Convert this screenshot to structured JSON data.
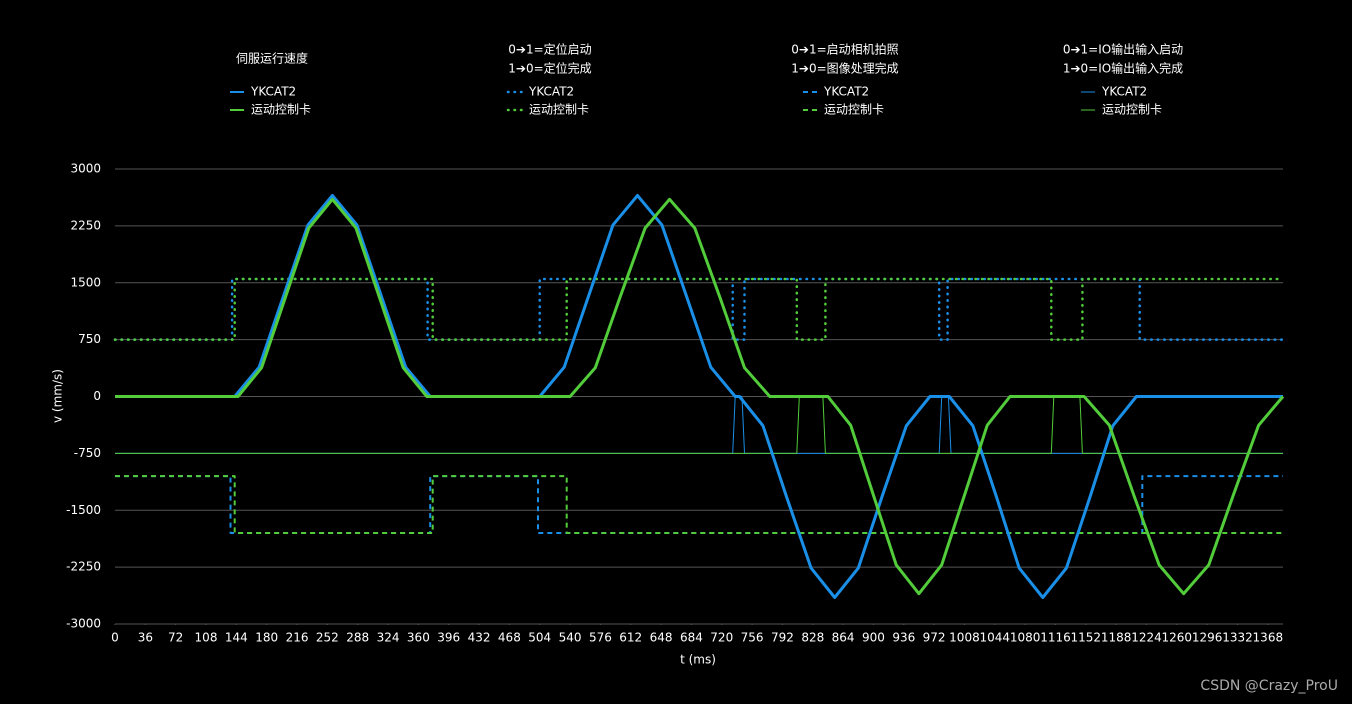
{
  "chart_data": {
    "type": "line",
    "xlabel": "t (ms)",
    "ylabel": "v (mm/s)",
    "xlim": [
      0,
      1386
    ],
    "ylim": [
      -3000,
      3000
    ],
    "xticks": [
      0,
      36,
      72,
      108,
      144,
      180,
      216,
      252,
      288,
      324,
      360,
      396,
      432,
      468,
      504,
      540,
      576,
      612,
      648,
      684,
      720,
      756,
      792,
      828,
      864,
      900,
      936,
      972,
      1008,
      1044,
      1080,
      1116,
      1152,
      1188,
      1224,
      1260,
      1296,
      1332,
      1368
    ],
    "yticks": [
      -3000,
      -2250,
      -1500,
      -750,
      0,
      750,
      1500,
      2250,
      3000
    ],
    "grid": true,
    "groups": [
      {
        "title": [
          "伺服运行速度"
        ],
        "series": [
          {
            "name": "YKCAT2",
            "color": "#1a8fe8",
            "style": "solid",
            "x": [
              0,
              142,
              171,
              200,
              229,
              258,
              287,
              316,
              345,
              374,
              504,
              533,
              562,
              591,
              620,
              649,
              678,
              707,
              736,
              741,
              769,
              797,
              826,
              854,
              882,
              910,
              939,
              967,
              990,
              1018,
              1046,
              1073,
              1101,
              1129,
              1157,
              1184,
              1212,
              1386
            ],
            "values": [
              0,
              0,
              387,
              1325,
              2263,
              2650,
              2263,
              1325,
              387,
              0,
              0,
              387,
              1325,
              2263,
              2650,
              2263,
              1325,
              387,
              0,
              0,
              -387,
              -1325,
              -2263,
              -2650,
              -2263,
              -1325,
              -387,
              0,
              0,
              -387,
              -1325,
              -2263,
              -2650,
              -2263,
              -1325,
              -387,
              0,
              0
            ]
          },
          {
            "name": "运动控制卡",
            "color": "#52cc3a",
            "style": "solid",
            "x": [
              0,
              146,
              174,
              202,
              230,
              258,
              286,
              314,
              342,
              370,
              540,
              570,
              599,
              629,
              658,
              688,
              718,
              747,
              777,
              846,
              873,
              900,
              927,
              954,
              981,
              1008,
              1035,
              1062,
              1150,
              1180,
              1209,
              1239,
              1268,
              1298,
              1327,
              1357,
              1386
            ],
            "values": [
              0,
              0,
              380,
              1300,
              2220,
              2600,
              2220,
              1300,
              380,
              0,
              0,
              380,
              1300,
              2220,
              2600,
              2220,
              1300,
              380,
              0,
              0,
              -380,
              -1300,
              -2220,
              -2600,
              -2220,
              -1300,
              -380,
              0,
              0,
              -380,
              -1300,
              -2220,
              -2600,
              -2220,
              -1300,
              -380,
              0
            ]
          }
        ]
      },
      {
        "title": [
          "0➔1=定位启动",
          "1➔0=定位完成"
        ],
        "series": [
          {
            "name": "YKCAT2",
            "color": "#1a8fe8",
            "style": "dotted",
            "x": [
              0,
              139,
              139,
              371,
              371,
              504,
              504,
              733,
              733,
              747,
              747,
              978,
              978,
              988,
              988,
              1216,
              1216,
              1386
            ],
            "values": [
              750,
              750,
              1550,
              1550,
              750,
              750,
              1550,
              1550,
              750,
              750,
              1550,
              1550,
              750,
              750,
              1550,
              1550,
              750,
              750
            ]
          },
          {
            "name": "运动控制卡",
            "color": "#52cc3a",
            "style": "dotted",
            "x": [
              0,
              142,
              142,
              377,
              377,
              536,
              536,
              809,
              809,
              843,
              843,
              1111,
              1111,
              1148,
              1148,
              1386
            ],
            "values": [
              750,
              750,
              1550,
              1550,
              750,
              750,
              1550,
              1550,
              750,
              750,
              1550,
              1550,
              750,
              750,
              1550,
              1550
            ]
          }
        ]
      },
      {
        "title": [
          "0➔1=启动相机拍照",
          "1➔0=图像处理完成"
        ],
        "series": [
          {
            "name": "YKCAT2",
            "color": "#1a8fe8",
            "style": "dashed",
            "x": [
              0,
              137,
              137,
              374,
              374,
              502,
              502,
              1219,
              1219,
              1386
            ],
            "values": [
              -1050,
              -1050,
              -1800,
              -1800,
              -1050,
              -1050,
              -1800,
              -1800,
              -1050,
              -1050
            ]
          },
          {
            "name": "运动控制卡",
            "color": "#52cc3a",
            "style": "dashed",
            "x": [
              0,
              142,
              142,
              377,
              377,
              536,
              536,
              1386
            ],
            "values": [
              -1050,
              -1050,
              -1800,
              -1800,
              -1050,
              -1050,
              -1800,
              -1800
            ]
          }
        ]
      },
      {
        "title": [
          "0➔1=IO输出输入启动",
          "1➔0=IO输出输入完成"
        ],
        "series": [
          {
            "name": "YKCAT2",
            "color": "#1a8fe8",
            "style": "thin",
            "x": [
              0,
              733,
              736,
              744,
              747,
              978,
              981,
              989,
              992,
              1386
            ],
            "values": [
              -750,
              -750,
              0,
              0,
              -750,
              -750,
              0,
              0,
              -750,
              -750
            ]
          },
          {
            "name": "运动控制卡",
            "color": "#52cc3a",
            "style": "thin",
            "x": [
              0,
              809,
              812,
              840,
              843,
              1111,
              1114,
              1145,
              1148,
              1386
            ],
            "values": [
              -750,
              -750,
              0,
              0,
              -750,
              -750,
              0,
              0,
              -750,
              -750
            ]
          }
        ]
      }
    ]
  },
  "watermark": "CSDN @Crazy_ProU"
}
